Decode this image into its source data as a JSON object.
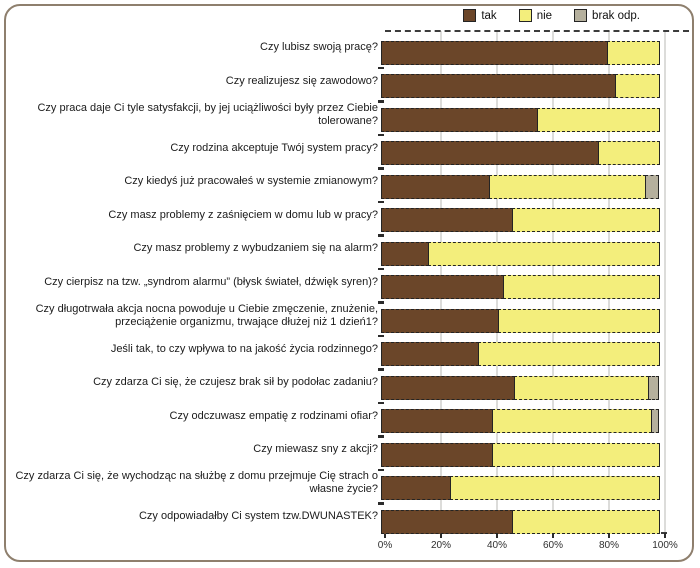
{
  "colors": {
    "tak": "#6b4629",
    "nie": "#f3ee7c",
    "brak_odp": "#b5b09d",
    "segment_border": "#242424",
    "gridline": "#dcdcda",
    "frame_border": "#8e7f6d"
  },
  "legend": {
    "position": "top-right",
    "items": [
      "tak",
      "nie",
      "brak odp."
    ]
  },
  "x_axis": {
    "tick_labels": [
      "0%",
      "20%",
      "40%",
      "60%",
      "80%",
      "100%"
    ]
  },
  "chart_data": {
    "type": "bar",
    "orientation": "horizontal",
    "stacked": true,
    "title": "",
    "xlabel": "",
    "ylabel": "",
    "xlim": [
      0,
      100
    ],
    "grid": "vertical",
    "legend_position": "top-right",
    "x_tick_labels": [
      "0%",
      "20%",
      "40%",
      "60%",
      "80%",
      "100%"
    ],
    "categories": [
      "Czy lubisz swoją pracę?",
      "Czy realizujesz się zawodowo?",
      "Czy praca daje Ci tyle satysfakcji, by jej uciążliwości były przez Ciebie tolerowane?",
      "Czy rodzina akceptuje Twój system pracy?",
      "Czy kiedyś już pracowałeś w systemie zmianowym?",
      "Czy masz problemy z zaśnięciem w domu lub w pracy?",
      "Czy masz problemy z wybudzaniem się na alarm?",
      "Czy cierpisz na tzw. „syndrom alarmu” (błysk świateł, dźwięk syren)?",
      "Czy długotrwała akcja nocna powoduje u Ciebie zmęczenie, znużenie, przeciążenie organizmu, trwające dłużej niż 1 dzień1?",
      "Jeśli tak, to czy wpływa to na jakość życia rodzinnego?",
      "Czy zdarza Ci się, że czujesz brak sił by podołac zadaniu?",
      "Czy odczuwasz empatię z rodzinami ofiar?",
      "Czy miewasz sny z akcji?",
      "Czy zdarza Ci się, że wychodząc na służbę z domu przejmuje Cię strach o własne życie?",
      "Czy odpowiadałby Ci system tzw.DWUNASTEK?"
    ],
    "series": [
      {
        "name": "tak",
        "color": "#6b4629",
        "values": [
          81,
          84,
          56,
          78,
          39,
          47,
          17,
          44,
          42,
          35,
          48,
          40,
          40,
          25,
          47
        ]
      },
      {
        "name": "nie",
        "color": "#f3ee7c",
        "values": [
          19,
          16,
          44,
          22,
          56,
          53,
          83,
          56,
          58,
          65,
          48,
          57,
          60,
          75,
          53
        ]
      },
      {
        "name": "brak odp.",
        "color": "#b5b09d",
        "values": [
          0,
          0,
          0,
          0,
          5,
          0,
          0,
          0,
          0,
          0,
          4,
          3,
          0,
          0,
          0
        ]
      }
    ]
  }
}
